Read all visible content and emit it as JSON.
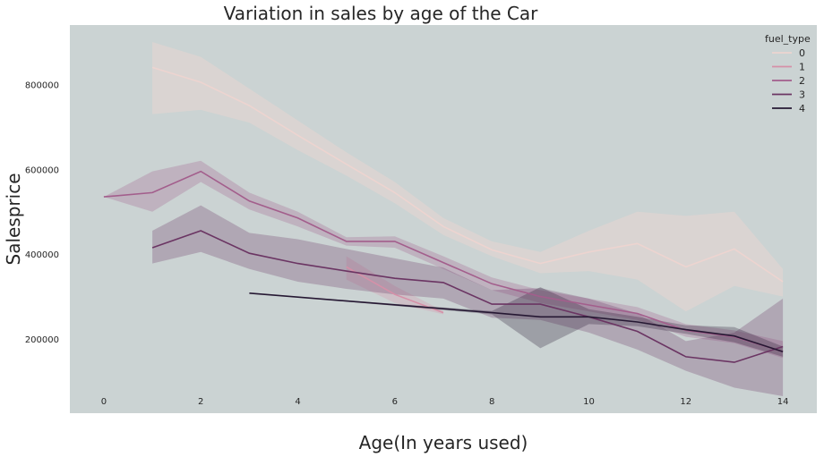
{
  "chart_data": {
    "type": "line",
    "title": "Variation in sales by age of the Car",
    "xlabel": "Age(In years used)",
    "ylabel": "Salesprice",
    "xlim": [
      -0.7,
      14.7
    ],
    "ylim": [
      25000,
      940000
    ],
    "x_ticks": [
      0,
      2,
      4,
      6,
      8,
      10,
      12,
      14
    ],
    "y_ticks": [
      200000,
      400000,
      600000,
      800000
    ],
    "grid": false,
    "background": "#cbd3d3",
    "legend": {
      "title": "fuel_type",
      "position": "top-right"
    },
    "series": [
      {
        "name": "0",
        "color": "#edd4d0",
        "x": [
          1,
          2,
          3,
          4,
          5,
          6,
          7,
          8,
          9,
          10,
          11,
          12,
          13,
          14
        ],
        "y": [
          840000,
          805000,
          750000,
          680000,
          612000,
          545000,
          465000,
          410000,
          378000,
          405000,
          425000,
          370000,
          412000,
          335000
        ],
        "lower": [
          730000,
          740000,
          710000,
          645000,
          585000,
          520000,
          445000,
          395000,
          355000,
          360000,
          340000,
          265000,
          325000,
          300000
        ],
        "upper": [
          900000,
          865000,
          790000,
          715000,
          640000,
          570000,
          485000,
          430000,
          405000,
          455000,
          500000,
          490000,
          500000,
          365000
        ]
      },
      {
        "name": "1",
        "color": "#d690a8",
        "x": [
          5,
          6,
          7
        ],
        "y": [
          370000,
          305000,
          262000
        ],
        "lower": [
          340000,
          285000,
          258000
        ],
        "upper": [
          395000,
          325000,
          266000
        ]
      },
      {
        "name": "2",
        "color": "#a35e8c",
        "x": [
          0,
          1,
          2,
          3,
          4,
          5,
          6,
          7,
          8,
          9,
          10,
          11,
          12,
          13,
          14
        ],
        "y": [
          535000,
          545000,
          595000,
          525000,
          485000,
          430000,
          430000,
          380000,
          330000,
          300000,
          280000,
          260000,
          220000,
          205000,
          170000
        ],
        "lower": [
          535000,
          500000,
          570000,
          505000,
          465000,
          420000,
          415000,
          365000,
          315000,
          285000,
          265000,
          245000,
          205000,
          190000,
          155000
        ],
        "upper": [
          535000,
          595000,
          620000,
          545000,
          500000,
          440000,
          442000,
          395000,
          345000,
          315000,
          295000,
          275000,
          235000,
          220000,
          195000
        ]
      },
      {
        "name": "3",
        "color": "#6b3563",
        "x": [
          1,
          2,
          3,
          4,
          5,
          6,
          7,
          8,
          9,
          10,
          11,
          12,
          13,
          14
        ],
        "y": [
          415000,
          455000,
          402000,
          378000,
          360000,
          343000,
          333000,
          282000,
          282000,
          252000,
          218000,
          158000,
          145000,
          182000
        ],
        "lower": [
          378000,
          405000,
          365000,
          335000,
          318000,
          305000,
          295000,
          250000,
          245000,
          215000,
          175000,
          125000,
          85000,
          65000
        ],
        "upper": [
          455000,
          515000,
          450000,
          435000,
          412000,
          390000,
          368000,
          315000,
          320000,
          295000,
          260000,
          195000,
          215000,
          295000
        ]
      },
      {
        "name": "4",
        "color": "#261833",
        "x": [
          3,
          8,
          9,
          10,
          11,
          12,
          13,
          14
        ],
        "y": [
          308000,
          262000,
          252000,
          252000,
          240000,
          222000,
          207000,
          170000
        ],
        "lower": [
          308000,
          258000,
          178000,
          235000,
          230000,
          212000,
          192000,
          158000
        ],
        "upper": [
          308000,
          266000,
          322000,
          270000,
          252000,
          232000,
          228000,
          182000
        ]
      }
    ]
  }
}
